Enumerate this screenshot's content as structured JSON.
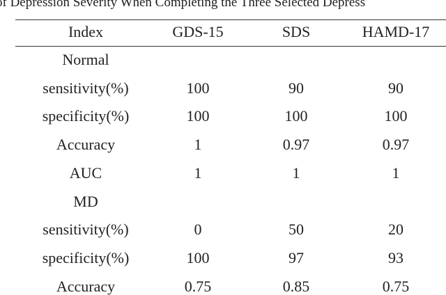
{
  "title": "of Depression Severity When Completing the Three Selected Depress",
  "table": {
    "header": [
      "Index",
      "GDS-15",
      "SDS",
      "HAMD-17"
    ],
    "sections": [
      {
        "label": "Normal",
        "rows": [
          [
            "sensitivity(%)",
            "100",
            "90",
            "90"
          ],
          [
            "specificity(%)",
            "100",
            "100",
            "100"
          ],
          [
            "Accuracy",
            "1",
            "0.97",
            "0.97"
          ],
          [
            "AUC",
            "1",
            "1",
            "1"
          ]
        ]
      },
      {
        "label": "MD",
        "rows": [
          [
            "sensitivity(%)",
            "0",
            "50",
            "20"
          ],
          [
            "specificity(%)",
            "100",
            "97",
            "93"
          ],
          [
            "Accuracy",
            "0.75",
            "0.85",
            "0.75"
          ]
        ]
      }
    ]
  }
}
